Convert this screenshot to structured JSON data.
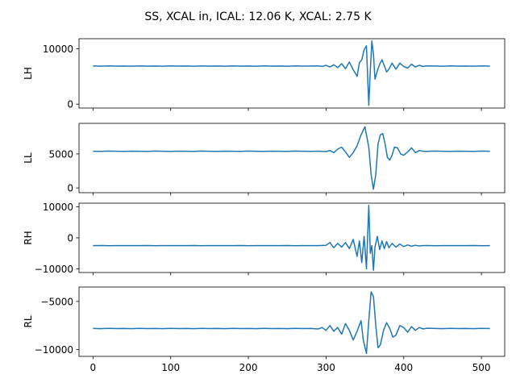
{
  "chart_data": {
    "type": "line",
    "title": "SS, XCAL in, ICAL: 12.06 K, XCAL: 2.75 K",
    "shared_x": true,
    "xlim": [
      -18,
      530
    ],
    "x_ticks": [
      0,
      100,
      200,
      300,
      400,
      500
    ],
    "x_tick_labels": [
      "0",
      "100",
      "200",
      "300",
      "400",
      "500"
    ],
    "line_color": "#1f77b4",
    "grid": false,
    "panels": [
      {
        "ylabel": "LH",
        "ylim": [
          -700,
          11800
        ],
        "y_ticks": [
          0,
          10000
        ],
        "y_tick_labels": [
          "0",
          "10000"
        ],
        "series": {
          "x": [
            0,
            10,
            20,
            30,
            40,
            50,
            60,
            70,
            80,
            90,
            100,
            110,
            120,
            130,
            140,
            150,
            160,
            170,
            180,
            190,
            200,
            210,
            220,
            230,
            240,
            250,
            260,
            270,
            280,
            290,
            295,
            300,
            305,
            310,
            315,
            320,
            325,
            330,
            335,
            338,
            340,
            343,
            346,
            349,
            352,
            355,
            357,
            359,
            361,
            363,
            366,
            369,
            372,
            375,
            378,
            381,
            385,
            390,
            395,
            400,
            405,
            410,
            415,
            420,
            425,
            430,
            440,
            450,
            460,
            470,
            480,
            490,
            500,
            511
          ],
          "y": [
            6900,
            6850,
            6880,
            6860,
            6870,
            6850,
            6880,
            6860,
            6870,
            6850,
            6880,
            6860,
            6870,
            6850,
            6880,
            6860,
            6870,
            6850,
            6880,
            6860,
            6870,
            6850,
            6880,
            6860,
            6870,
            6850,
            6880,
            6860,
            6870,
            6880,
            6820,
            7000,
            6700,
            7100,
            6600,
            7300,
            6400,
            7600,
            6200,
            5500,
            5000,
            7500,
            8000,
            9800,
            10500,
            -200,
            6000,
            11400,
            9000,
            4500,
            6000,
            7200,
            8000,
            6900,
            5800,
            6300,
            7400,
            6300,
            7400,
            6800,
            6500,
            7200,
            6700,
            7000,
            6800,
            6900,
            6870,
            6850,
            6880,
            6860,
            6870,
            6850,
            6880,
            6860
          ]
        }
      },
      {
        "ylabel": "LL",
        "ylim": [
          -700,
          9500
        ],
        "y_ticks": [
          0,
          5000
        ],
        "y_tick_labels": [
          "0",
          "5000"
        ],
        "series": {
          "x": [
            0,
            10,
            20,
            30,
            40,
            50,
            60,
            70,
            80,
            90,
            100,
            110,
            120,
            130,
            140,
            150,
            160,
            170,
            180,
            190,
            200,
            210,
            220,
            230,
            240,
            250,
            260,
            270,
            280,
            290,
            300,
            305,
            310,
            315,
            320,
            325,
            330,
            335,
            340,
            345,
            350,
            355,
            358,
            361,
            364,
            367,
            370,
            373,
            376,
            379,
            382,
            385,
            388,
            392,
            396,
            400,
            405,
            410,
            415,
            420,
            425,
            430,
            440,
            450,
            460,
            470,
            480,
            490,
            500,
            511
          ],
          "y": [
            5400,
            5380,
            5420,
            5400,
            5390,
            5410,
            5400,
            5380,
            5420,
            5400,
            5390,
            5410,
            5400,
            5380,
            5420,
            5400,
            5390,
            5410,
            5400,
            5380,
            5420,
            5400,
            5390,
            5410,
            5400,
            5380,
            5420,
            5400,
            5390,
            5410,
            5350,
            5500,
            5200,
            5700,
            6000,
            5300,
            4500,
            5200,
            6200,
            7800,
            9000,
            6000,
            2000,
            -200,
            2000,
            6500,
            7800,
            8000,
            6500,
            4500,
            4100,
            4800,
            6000,
            5900,
            5000,
            4800,
            5300,
            5900,
            5200,
            5500,
            5400,
            5380,
            5420,
            5400,
            5390,
            5410,
            5400,
            5380,
            5420,
            5400
          ]
        }
      },
      {
        "ylabel": "RH",
        "ylim": [
          -11200,
          11200
        ],
        "y_ticks": [
          -10000,
          0,
          10000
        ],
        "y_tick_labels": [
          "−10000",
          "0",
          "10000"
        ],
        "series": {
          "x": [
            0,
            10,
            20,
            30,
            40,
            50,
            60,
            70,
            80,
            90,
            100,
            110,
            120,
            130,
            140,
            150,
            160,
            170,
            180,
            190,
            200,
            210,
            220,
            230,
            240,
            250,
            260,
            270,
            280,
            290,
            300,
            305,
            310,
            315,
            320,
            325,
            330,
            335,
            340,
            343,
            346,
            349,
            352,
            355,
            357,
            359,
            361,
            363,
            366,
            369,
            372,
            375,
            378,
            381,
            385,
            390,
            395,
            400,
            405,
            410,
            415,
            420,
            425,
            430,
            440,
            450,
            460,
            470,
            480,
            490,
            500,
            511
          ],
          "y": [
            -2500,
            -2480,
            -2520,
            -2500,
            -2490,
            -2510,
            -2500,
            -2480,
            -2520,
            -2500,
            -2490,
            -2510,
            -2500,
            -2480,
            -2520,
            -2500,
            -2490,
            -2510,
            -2500,
            -2480,
            -2520,
            -2500,
            -2490,
            -2510,
            -2500,
            -2480,
            -2520,
            -2500,
            -2490,
            -2510,
            -2400,
            -1500,
            -3200,
            -1800,
            -3000,
            -1500,
            -3500,
            -500,
            -6000,
            -1000,
            -8000,
            500,
            -10000,
            10500,
            -5000,
            -2500,
            -10500,
            -3000,
            500,
            -3800,
            -1000,
            -3500,
            -1200,
            -3200,
            -1800,
            -3000,
            -2000,
            -2800,
            -2300,
            -2700,
            -2400,
            -2600,
            -2500,
            -2480,
            -2520,
            -2500,
            -2490,
            -2510,
            -2500,
            -2480,
            -2520,
            -2500
          ]
        }
      },
      {
        "ylabel": "RL",
        "ylim": [
          -10700,
          -3500
        ],
        "y_ticks": [
          -10000,
          -5000
        ],
        "y_tick_labels": [
          "−10000",
          "−5000"
        ],
        "series": {
          "x": [
            0,
            10,
            20,
            30,
            40,
            50,
            60,
            70,
            80,
            90,
            100,
            110,
            120,
            130,
            140,
            150,
            160,
            170,
            180,
            190,
            200,
            210,
            220,
            230,
            240,
            250,
            260,
            270,
            280,
            290,
            295,
            300,
            305,
            310,
            315,
            320,
            325,
            330,
            335,
            340,
            345,
            348,
            352,
            355,
            358,
            361,
            364,
            367,
            370,
            374,
            378,
            382,
            386,
            390,
            395,
            400,
            405,
            410,
            415,
            420,
            425,
            430,
            440,
            450,
            460,
            470,
            480,
            490,
            500,
            511
          ],
          "y": [
            -7800,
            -7820,
            -7790,
            -7810,
            -7800,
            -7820,
            -7790,
            -7810,
            -7800,
            -7820,
            -7790,
            -7810,
            -7800,
            -7820,
            -7790,
            -7810,
            -7800,
            -7820,
            -7790,
            -7810,
            -7800,
            -7820,
            -7790,
            -7810,
            -7800,
            -7820,
            -7790,
            -7810,
            -7800,
            -7850,
            -7700,
            -8000,
            -7500,
            -8100,
            -7700,
            -8400,
            -7300,
            -8000,
            -9000,
            -8100,
            -7000,
            -9000,
            -10400,
            -7000,
            -4000,
            -4500,
            -7500,
            -9800,
            -9500,
            -8000,
            -7200,
            -7800,
            -8700,
            -8500,
            -7500,
            -7700,
            -8200,
            -7600,
            -8000,
            -7700,
            -7850,
            -7780,
            -7800,
            -7820,
            -7790,
            -7810,
            -7800,
            -7820,
            -7790,
            -7810
          ]
        }
      }
    ]
  }
}
